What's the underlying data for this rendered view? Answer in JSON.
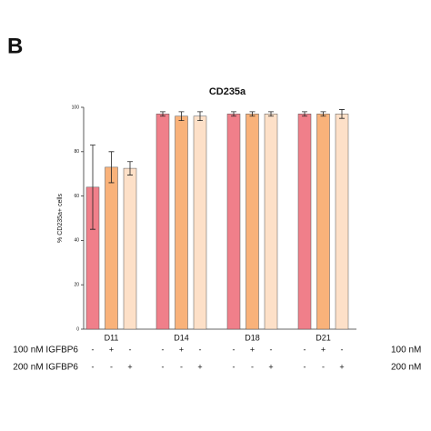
{
  "panel_label": "B",
  "chart_data": {
    "type": "bar",
    "title": "CD235a",
    "y_label": "% CD235a+ cells",
    "categories": [
      "D11",
      "D14",
      "D18",
      "D21"
    ],
    "series": [
      {
        "color": "#f07f8a",
        "values": [
          64,
          97,
          97,
          97
        ],
        "errors": [
          19,
          1,
          1,
          1
        ]
      },
      {
        "color": "#f9b27a",
        "values": [
          73,
          96,
          97,
          97
        ],
        "errors": [
          7,
          2,
          1,
          1
        ]
      },
      {
        "color": "#fde0c8",
        "values": [
          72.5,
          96,
          97,
          97
        ],
        "errors": [
          3,
          2,
          1,
          2
        ]
      }
    ],
    "ylim": [
      0,
      100
    ],
    "yticks": [
      0,
      20,
      40,
      60,
      80,
      100
    ]
  },
  "treatments": [
    {
      "label": "100 nM IGFBP6",
      "label_right": "100 nM",
      "signs": [
        "-",
        "+",
        "-",
        "-",
        "+",
        "-",
        "-",
        "+",
        "-",
        "-",
        "+",
        "-"
      ]
    },
    {
      "label": "200 nM IGFBP6",
      "label_right": "200 nM",
      "signs": [
        "-",
        "-",
        "+",
        "-",
        "-",
        "+",
        "-",
        "-",
        "+",
        "-",
        "-",
        "+"
      ]
    }
  ]
}
